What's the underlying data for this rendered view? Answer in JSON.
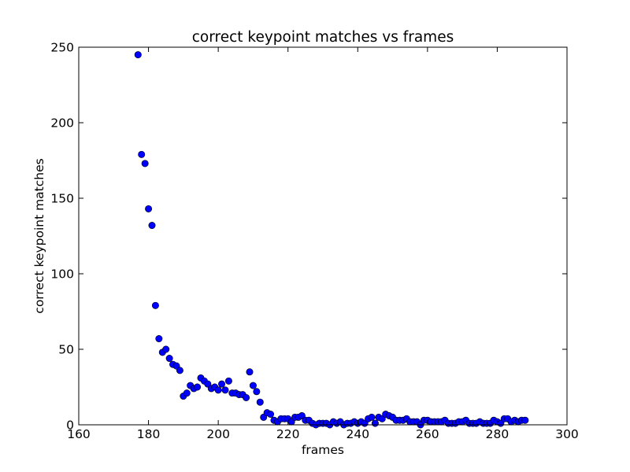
{
  "chart_data": {
    "type": "scatter",
    "title": "correct keypoint matches vs frames",
    "xlabel": "frames",
    "ylabel": "correct keypoint matches",
    "xlim": [
      160,
      300
    ],
    "ylim": [
      0,
      250
    ],
    "xticks": [
      160,
      180,
      200,
      220,
      240,
      260,
      280,
      300
    ],
    "yticks": [
      0,
      50,
      100,
      150,
      200,
      250
    ],
    "grid": false,
    "marker_color": "#0000ff",
    "marker_edge": "#000000",
    "points": [
      {
        "x": 177,
        "y": 245
      },
      {
        "x": 178,
        "y": 179
      },
      {
        "x": 179,
        "y": 173
      },
      {
        "x": 180,
        "y": 143
      },
      {
        "x": 181,
        "y": 132
      },
      {
        "x": 182,
        "y": 79
      },
      {
        "x": 183,
        "y": 57
      },
      {
        "x": 184,
        "y": 48
      },
      {
        "x": 185,
        "y": 50
      },
      {
        "x": 186,
        "y": 44
      },
      {
        "x": 187,
        "y": 40
      },
      {
        "x": 188,
        "y": 39
      },
      {
        "x": 189,
        "y": 36
      },
      {
        "x": 190,
        "y": 19
      },
      {
        "x": 191,
        "y": 21
      },
      {
        "x": 192,
        "y": 26
      },
      {
        "x": 193,
        "y": 24
      },
      {
        "x": 194,
        "y": 25
      },
      {
        "x": 195,
        "y": 31
      },
      {
        "x": 196,
        "y": 29
      },
      {
        "x": 197,
        "y": 27
      },
      {
        "x": 198,
        "y": 24
      },
      {
        "x": 199,
        "y": 25
      },
      {
        "x": 200,
        "y": 23
      },
      {
        "x": 201,
        "y": 27
      },
      {
        "x": 202,
        "y": 23
      },
      {
        "x": 203,
        "y": 29
      },
      {
        "x": 204,
        "y": 21
      },
      {
        "x": 205,
        "y": 21
      },
      {
        "x": 206,
        "y": 20
      },
      {
        "x": 207,
        "y": 20
      },
      {
        "x": 208,
        "y": 18
      },
      {
        "x": 209,
        "y": 35
      },
      {
        "x": 210,
        "y": 26
      },
      {
        "x": 211,
        "y": 22
      },
      {
        "x": 212,
        "y": 15
      },
      {
        "x": 213,
        "y": 5
      },
      {
        "x": 214,
        "y": 8
      },
      {
        "x": 215,
        "y": 7
      },
      {
        "x": 216,
        "y": 3
      },
      {
        "x": 217,
        "y": 2
      },
      {
        "x": 218,
        "y": 4
      },
      {
        "x": 219,
        "y": 4
      },
      {
        "x": 220,
        "y": 4
      },
      {
        "x": 221,
        "y": 2
      },
      {
        "x": 222,
        "y": 5
      },
      {
        "x": 223,
        "y": 5
      },
      {
        "x": 224,
        "y": 6
      },
      {
        "x": 225,
        "y": 3
      },
      {
        "x": 226,
        "y": 3
      },
      {
        "x": 227,
        "y": 1
      },
      {
        "x": 228,
        "y": 0
      },
      {
        "x": 229,
        "y": 1
      },
      {
        "x": 230,
        "y": 1
      },
      {
        "x": 231,
        "y": 1
      },
      {
        "x": 232,
        "y": 0
      },
      {
        "x": 233,
        "y": 2
      },
      {
        "x": 234,
        "y": 1
      },
      {
        "x": 235,
        "y": 2
      },
      {
        "x": 236,
        "y": 0
      },
      {
        "x": 237,
        "y": 1
      },
      {
        "x": 238,
        "y": 1
      },
      {
        "x": 239,
        "y": 2
      },
      {
        "x": 240,
        "y": 1
      },
      {
        "x": 241,
        "y": 2
      },
      {
        "x": 242,
        "y": 1
      },
      {
        "x": 243,
        "y": 4
      },
      {
        "x": 244,
        "y": 5
      },
      {
        "x": 245,
        "y": 1
      },
      {
        "x": 246,
        "y": 5
      },
      {
        "x": 247,
        "y": 4
      },
      {
        "x": 248,
        "y": 7
      },
      {
        "x": 249,
        "y": 6
      },
      {
        "x": 250,
        "y": 5
      },
      {
        "x": 251,
        "y": 3
      },
      {
        "x": 252,
        "y": 3
      },
      {
        "x": 253,
        "y": 3
      },
      {
        "x": 254,
        "y": 4
      },
      {
        "x": 255,
        "y": 2
      },
      {
        "x": 256,
        "y": 2
      },
      {
        "x": 257,
        "y": 2
      },
      {
        "x": 258,
        "y": 0
      },
      {
        "x": 259,
        "y": 3
      },
      {
        "x": 260,
        "y": 3
      },
      {
        "x": 261,
        "y": 2
      },
      {
        "x": 262,
        "y": 2
      },
      {
        "x": 263,
        "y": 2
      },
      {
        "x": 264,
        "y": 2
      },
      {
        "x": 265,
        "y": 3
      },
      {
        "x": 266,
        "y": 1
      },
      {
        "x": 267,
        "y": 1
      },
      {
        "x": 268,
        "y": 1
      },
      {
        "x": 269,
        "y": 2
      },
      {
        "x": 270,
        "y": 2
      },
      {
        "x": 271,
        "y": 3
      },
      {
        "x": 272,
        "y": 1
      },
      {
        "x": 273,
        "y": 1
      },
      {
        "x": 274,
        "y": 1
      },
      {
        "x": 275,
        "y": 2
      },
      {
        "x": 276,
        "y": 1
      },
      {
        "x": 277,
        "y": 1
      },
      {
        "x": 278,
        "y": 1
      },
      {
        "x": 279,
        "y": 3
      },
      {
        "x": 280,
        "y": 2
      },
      {
        "x": 281,
        "y": 1
      },
      {
        "x": 282,
        "y": 4
      },
      {
        "x": 283,
        "y": 4
      },
      {
        "x": 284,
        "y": 2
      },
      {
        "x": 285,
        "y": 3
      },
      {
        "x": 286,
        "y": 2
      },
      {
        "x": 287,
        "y": 3
      },
      {
        "x": 288,
        "y": 3
      }
    ]
  }
}
